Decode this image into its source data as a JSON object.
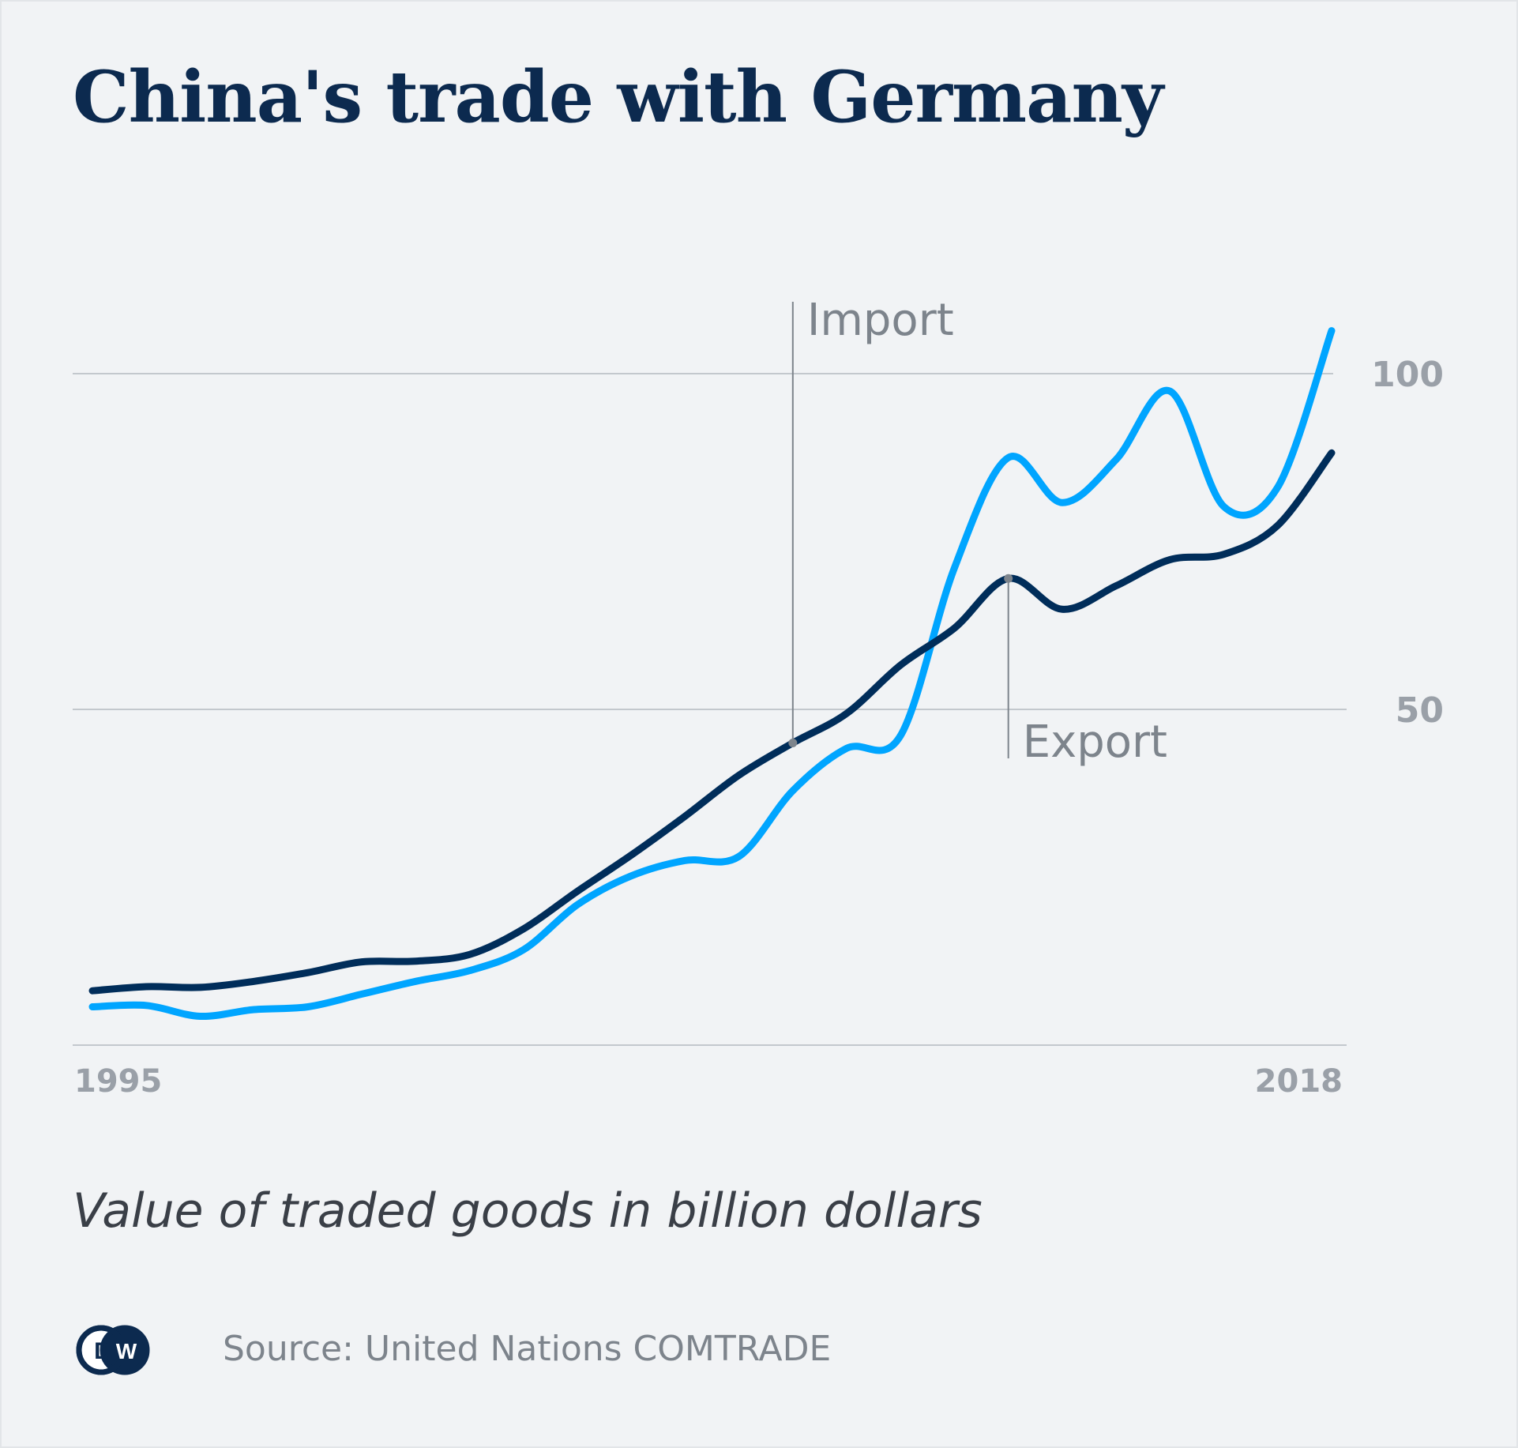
{
  "chart_data": {
    "type": "line",
    "title": "China's trade with Germany",
    "subtitle": "Value of traded goods in billion dollars",
    "source": "Source: United Nations COMTRADE",
    "logo_text": "DW",
    "x": [
      1995,
      1996,
      1997,
      1998,
      1999,
      2000,
      2001,
      2002,
      2003,
      2004,
      2005,
      2006,
      2007,
      2008,
      2009,
      2010,
      2011,
      2012,
      2013,
      2014,
      2015,
      2016,
      2017,
      2018
    ],
    "xticks": [
      "1995",
      "2018"
    ],
    "yticks": [
      50,
      100
    ],
    "ylim": [
      0,
      104
    ],
    "xlim": [
      1995,
      2018
    ],
    "grid": true,
    "y_axis_position": "right",
    "colors": {
      "import": "#002d5a",
      "export": "#00a5ff",
      "background": "#f1f3f5",
      "title": "#0c2a4f",
      "annotation": "#7d848c"
    },
    "series": [
      {
        "name": "Import",
        "values": [
          8.1,
          8.7,
          8.6,
          9.5,
          10.8,
          12.4,
          12.5,
          13.5,
          17.3,
          22.9,
          28.3,
          34.1,
          40.2,
          45.0,
          49.4,
          56.6,
          62.1,
          69.5,
          64.9,
          68.4,
          72.3,
          73.1,
          77.4,
          88.2
        ]
      },
      {
        "name": "Export",
        "values": [
          5.7,
          5.9,
          4.3,
          5.3,
          5.7,
          7.6,
          9.5,
          11.1,
          14.2,
          20.9,
          25.2,
          27.5,
          28.1,
          37.9,
          44.2,
          46.1,
          71.1,
          87.5,
          80.8,
          87.2,
          97.4,
          80.2,
          83.1,
          106.4
        ]
      }
    ],
    "annotations": [
      {
        "label": "Import",
        "series": "Import",
        "x": 2008
      },
      {
        "label": "Export",
        "series": "Import",
        "x": 2012
      }
    ]
  }
}
